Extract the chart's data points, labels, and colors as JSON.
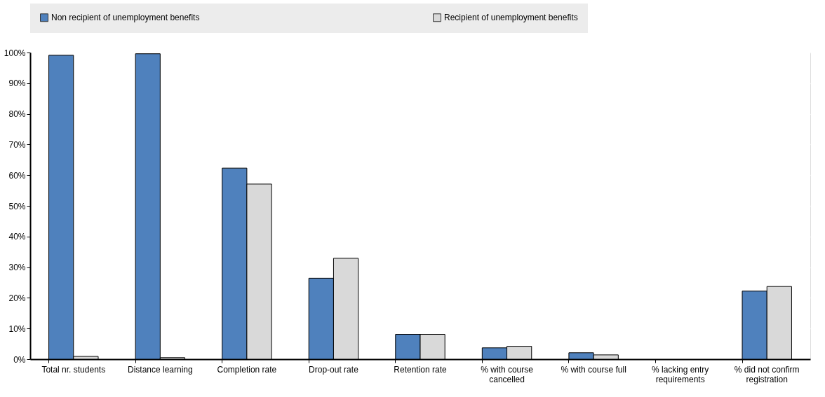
{
  "chart_data": {
    "type": "bar",
    "categories": [
      "Total nr. students",
      "Distance learning",
      "Completion rate",
      "Drop-out rate",
      "Retention rate",
      "% with course cancelled",
      "% with course full",
      "% lacking entry requirements",
      "% did not confirm registration"
    ],
    "series": [
      {
        "name": "Non recipient of unemployment benefits",
        "color": "#4f81bd",
        "values": [
          99.1,
          99.6,
          62.3,
          26.4,
          8.1,
          3.7,
          2.1,
          null,
          22.2
        ]
      },
      {
        "name": "Recipient of unemployment benefits",
        "color": "#d9d9d9",
        "values": [
          0.9,
          0.5,
          57.1,
          32.9,
          8.1,
          4.2,
          1.4,
          null,
          23.7
        ]
      }
    ],
    "ylim": [
      0,
      100
    ],
    "yticks": [
      {
        "value": 0,
        "label": "0%"
      },
      {
        "value": 10,
        "label": "10%"
      },
      {
        "value": 20,
        "label": "20%"
      },
      {
        "value": 30,
        "label": "30%"
      },
      {
        "value": 40,
        "label": "40%"
      },
      {
        "value": 50,
        "label": "50%"
      },
      {
        "value": 60,
        "label": "60%"
      },
      {
        "value": 70,
        "label": "70%"
      },
      {
        "value": 80,
        "label": "80%"
      },
      {
        "value": 90,
        "label": "90%"
      },
      {
        "value": 100,
        "label": "100%"
      }
    ],
    "grid": true,
    "legend": "top"
  }
}
